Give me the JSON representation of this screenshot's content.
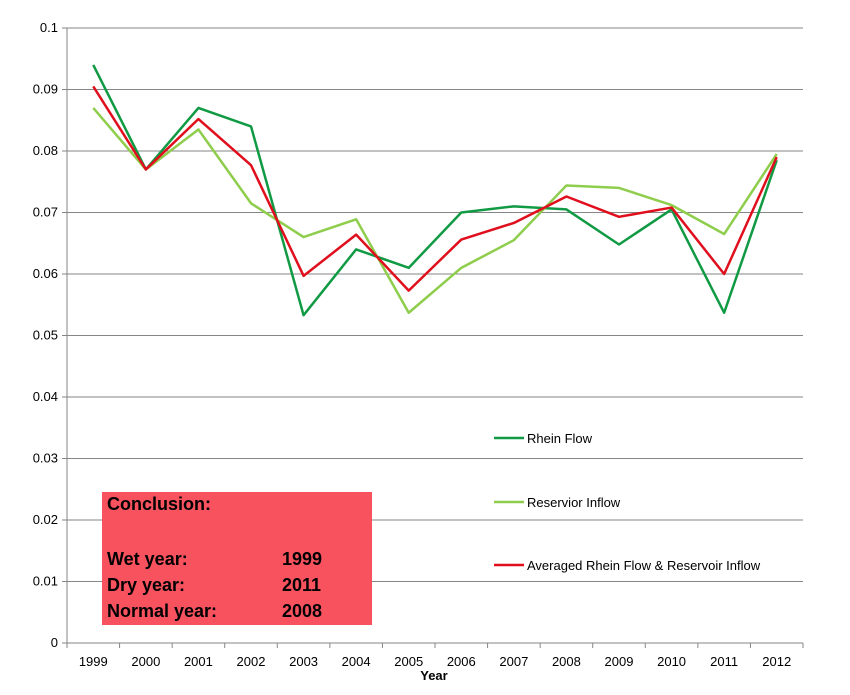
{
  "chart_data": {
    "type": "line",
    "title": "",
    "xlabel": "Year",
    "ylabel": "",
    "ylim": [
      0,
      0.1
    ],
    "y_ticks": [
      "0",
      "0.01",
      "0.02",
      "0.03",
      "0.04",
      "0.05",
      "0.06",
      "0.07",
      "0.08",
      "0.09",
      "0.1"
    ],
    "grid": true,
    "legend_position": "right",
    "categories": [
      "1999",
      "2000",
      "2001",
      "2002",
      "2003",
      "2004",
      "2005",
      "2006",
      "2007",
      "2008",
      "2009",
      "2010",
      "2011",
      "2012"
    ],
    "series": [
      {
        "name": "Rhein Flow",
        "color": "#119a44",
        "values": [
          0.094,
          0.077,
          0.087,
          0.084,
          0.0533,
          0.064,
          0.061,
          0.07,
          0.071,
          0.0705,
          0.0648,
          0.0705,
          0.0537,
          0.0785
        ]
      },
      {
        "name": "Reservior Inflow",
        "color": "#8fcd4c",
        "values": [
          0.087,
          0.077,
          0.0835,
          0.0715,
          0.066,
          0.0689,
          0.0537,
          0.061,
          0.0655,
          0.0744,
          0.074,
          0.0712,
          0.0665,
          0.0795
        ]
      },
      {
        "name": "Averaged Rhein Flow & Reservoir Inflow",
        "color": "#e00f1d",
        "values": [
          0.0905,
          0.077,
          0.0852,
          0.0777,
          0.0597,
          0.0664,
          0.0573,
          0.0656,
          0.0683,
          0.0726,
          0.0693,
          0.0708,
          0.06,
          0.079
        ]
      }
    ]
  },
  "conclusion": {
    "title": "Conclusion:",
    "rows": [
      {
        "label": "Wet year:",
        "value": "1999"
      },
      {
        "label": "Dry year:",
        "value": "2011"
      },
      {
        "label": "Normal year:",
        "value": "2008"
      }
    ]
  }
}
